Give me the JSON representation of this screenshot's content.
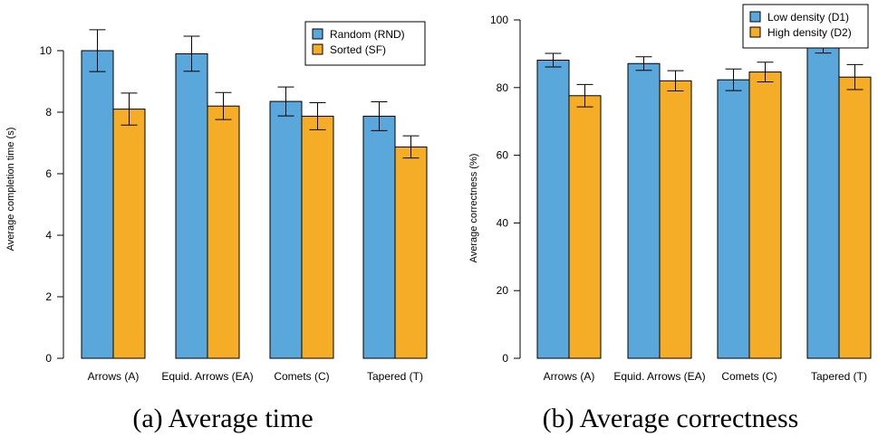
{
  "chart_data": [
    {
      "type": "bar",
      "caption": "(a)  Average time",
      "ylabel": "Average completion time (s)",
      "ylim": [
        0,
        11
      ],
      "yticks": [
        0,
        2,
        4,
        6,
        8,
        10
      ],
      "categories": [
        "Arrows (A)",
        "Equid. Arrows (EA)",
        "Comets (C)",
        "Tapered (T)"
      ],
      "series": [
        {
          "name": "Random (RND)",
          "color": "#5aa7db",
          "values": [
            10.0,
            9.9,
            8.35,
            7.87
          ],
          "error": [
            0.68,
            0.57,
            0.47,
            0.47
          ]
        },
        {
          "name": "Sorted    (SF)",
          "color": "#f5ad28",
          "values": [
            8.1,
            8.2,
            7.87,
            6.87
          ],
          "error": [
            0.52,
            0.44,
            0.44,
            0.36
          ]
        }
      ],
      "legend_position": "top-right",
      "grid": false
    },
    {
      "type": "bar",
      "caption": "(b)  Average correctness",
      "ylabel": "Average correctness (%)",
      "ylim": [
        0,
        100
      ],
      "yticks": [
        0,
        20,
        40,
        60,
        80,
        100
      ],
      "categories": [
        "Arrows (A)",
        "Equid. Arrows (EA)",
        "Comets (C)",
        "Tapered (T)"
      ],
      "series": [
        {
          "name": "Low density  (D1)",
          "color": "#5aa7db",
          "values": [
            88.1,
            87.1,
            82.3,
            91.8
          ],
          "error": [
            2.0,
            2.0,
            3.2,
            1.6
          ]
        },
        {
          "name": "High density (D2)",
          "color": "#f5ad28",
          "values": [
            77.6,
            82.0,
            84.6,
            83.1
          ],
          "error": [
            3.3,
            3.0,
            2.9,
            3.7
          ]
        }
      ],
      "legend_position": "top-right",
      "grid": false
    }
  ]
}
